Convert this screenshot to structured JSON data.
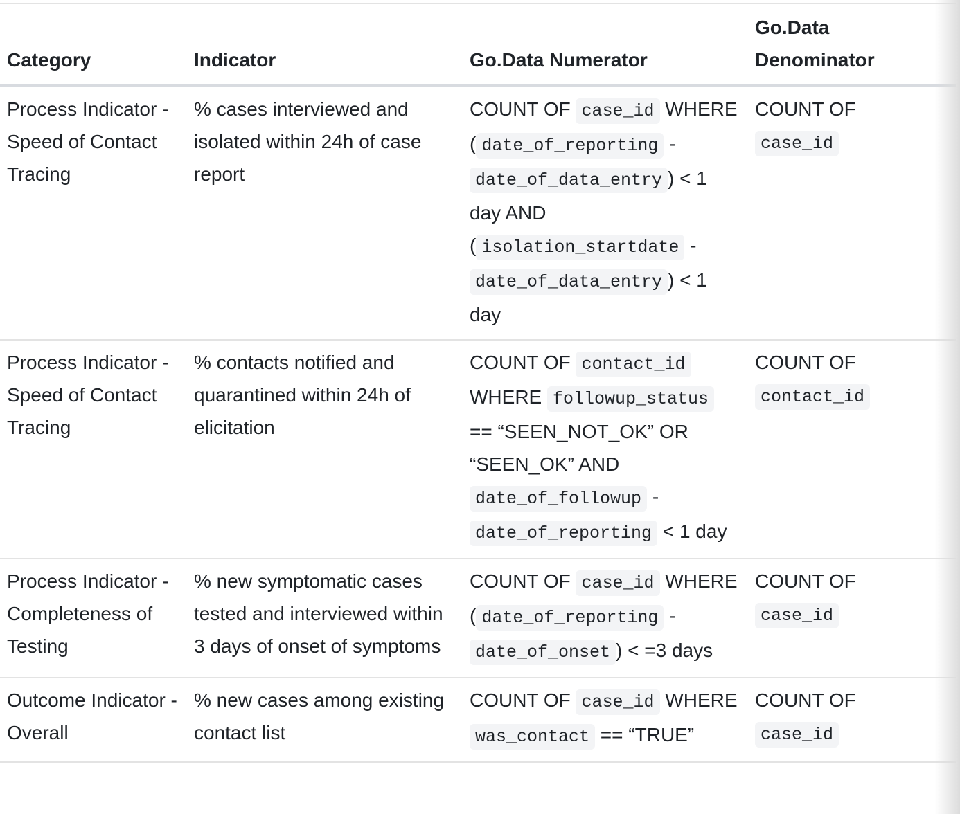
{
  "table": {
    "headers": {
      "category": "Category",
      "indicator": "Indicator",
      "numerator": "Go.Data Numerator",
      "denominator_line1": "Go.Data",
      "denominator_line2": "Denominator"
    },
    "rows": [
      {
        "category": "Process Indicator - Speed of Contact Tracing",
        "indicator": "% cases interviewed and isolated within 24h of case report",
        "numerator": [
          {
            "t": "text",
            "v": "COUNT OF "
          },
          {
            "t": "code",
            "v": "case_id"
          },
          {
            "t": "text",
            "v": " WHERE ("
          },
          {
            "t": "code",
            "v": "date_of_reporting"
          },
          {
            "t": "text",
            "v": " - "
          },
          {
            "t": "code",
            "v": "date_of_data_entry"
          },
          {
            "t": "text",
            "v": ") < 1 day AND ("
          },
          {
            "t": "code",
            "v": "isolation_startdate"
          },
          {
            "t": "text",
            "v": " - "
          },
          {
            "t": "code",
            "v": "date_of_data_entry"
          },
          {
            "t": "text",
            "v": ") < 1 day"
          }
        ],
        "denominator": {
          "text": "COUNT OF ",
          "code": "case_id"
        }
      },
      {
        "category": "Process Indicator - Speed of Contact Tracing",
        "indicator": "% contacts notified and quarantined within 24h of elicitation",
        "numerator": [
          {
            "t": "text",
            "v": "COUNT OF "
          },
          {
            "t": "code",
            "v": "contact_id"
          },
          {
            "t": "text",
            "v": " WHERE "
          },
          {
            "t": "code",
            "v": "followup_status"
          },
          {
            "t": "text",
            "v": " == “SEEN_NOT_OK” OR “SEEN_OK” AND "
          },
          {
            "t": "code",
            "v": "date_of_followup"
          },
          {
            "t": "text",
            "v": " - "
          },
          {
            "t": "code",
            "v": "date_of_reporting"
          },
          {
            "t": "text",
            "v": " < 1 day"
          }
        ],
        "denominator": {
          "text": "COUNT OF ",
          "code": "contact_id"
        }
      },
      {
        "category": "Process Indicator - Completeness of Testing",
        "indicator": "% new symptomatic cases tested and interviewed within 3 days of onset of symptoms",
        "numerator": [
          {
            "t": "text",
            "v": "COUNT OF "
          },
          {
            "t": "code",
            "v": "case_id"
          },
          {
            "t": "text",
            "v": " WHERE ("
          },
          {
            "t": "code",
            "v": "date_of_reporting"
          },
          {
            "t": "text",
            "v": " - "
          },
          {
            "t": "code",
            "v": "date_of_onset"
          },
          {
            "t": "text",
            "v": ") < =3 days"
          }
        ],
        "denominator": {
          "text": "COUNT OF ",
          "code": "case_id"
        }
      },
      {
        "category": "Outcome Indicator - Overall",
        "indicator": "% new cases among existing contact list",
        "numerator": [
          {
            "t": "text",
            "v": "COUNT OF "
          },
          {
            "t": "code",
            "v": "case_id"
          },
          {
            "t": "text",
            "v": " WHERE "
          },
          {
            "t": "code",
            "v": "was_contact"
          },
          {
            "t": "text",
            "v": " == “TRUE”"
          }
        ],
        "denominator": {
          "text": "COUNT OF ",
          "code": "case_id"
        }
      }
    ]
  }
}
